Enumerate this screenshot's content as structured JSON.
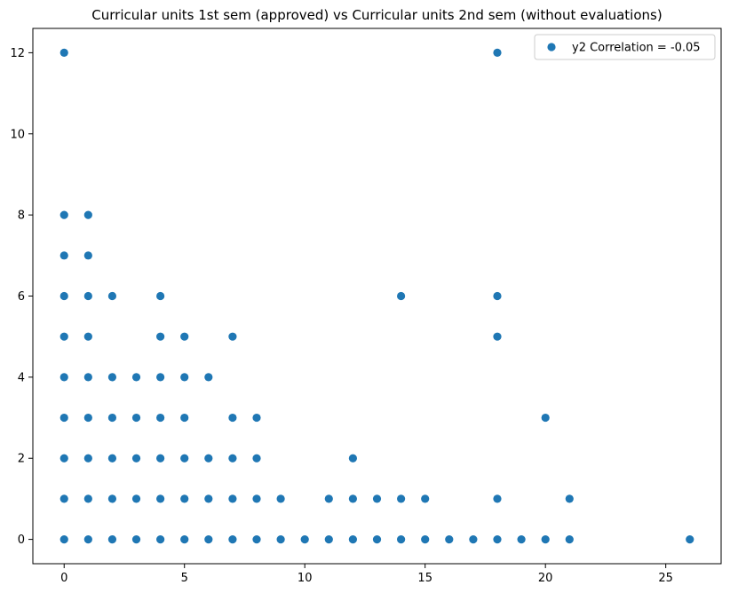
{
  "chart_data": {
    "type": "scatter",
    "title": "Curricular units 1st sem (approved) vs Curricular units 2nd sem (without evaluations)",
    "xlabel": "",
    "ylabel": "",
    "xlim": [
      -1.3,
      27.3
    ],
    "ylim": [
      -0.6,
      12.6
    ],
    "xticks": [
      0,
      5,
      10,
      15,
      20,
      25
    ],
    "yticks": [
      0,
      2,
      4,
      6,
      8,
      10,
      12
    ],
    "grid": false,
    "legend_position": "top-right",
    "series": [
      {
        "name": "y2 Correlation = -0.05",
        "color": "#1f77b4",
        "points": [
          [
            0,
            0
          ],
          [
            1,
            0
          ],
          [
            2,
            0
          ],
          [
            3,
            0
          ],
          [
            4,
            0
          ],
          [
            5,
            0
          ],
          [
            6,
            0
          ],
          [
            7,
            0
          ],
          [
            8,
            0
          ],
          [
            9,
            0
          ],
          [
            10,
            0
          ],
          [
            11,
            0
          ],
          [
            12,
            0
          ],
          [
            13,
            0
          ],
          [
            14,
            0
          ],
          [
            15,
            0
          ],
          [
            16,
            0
          ],
          [
            17,
            0
          ],
          [
            18,
            0
          ],
          [
            19,
            0
          ],
          [
            20,
            0
          ],
          [
            21,
            0
          ],
          [
            26,
            0
          ],
          [
            0,
            1
          ],
          [
            1,
            1
          ],
          [
            2,
            1
          ],
          [
            3,
            1
          ],
          [
            4,
            1
          ],
          [
            5,
            1
          ],
          [
            6,
            1
          ],
          [
            7,
            1
          ],
          [
            8,
            1
          ],
          [
            9,
            1
          ],
          [
            11,
            1
          ],
          [
            12,
            1
          ],
          [
            13,
            1
          ],
          [
            14,
            1
          ],
          [
            15,
            1
          ],
          [
            18,
            1
          ],
          [
            21,
            1
          ],
          [
            0,
            2
          ],
          [
            1,
            2
          ],
          [
            2,
            2
          ],
          [
            3,
            2
          ],
          [
            4,
            2
          ],
          [
            5,
            2
          ],
          [
            6,
            2
          ],
          [
            7,
            2
          ],
          [
            8,
            2
          ],
          [
            12,
            2
          ],
          [
            0,
            3
          ],
          [
            1,
            3
          ],
          [
            2,
            3
          ],
          [
            3,
            3
          ],
          [
            4,
            3
          ],
          [
            5,
            3
          ],
          [
            7,
            3
          ],
          [
            8,
            3
          ],
          [
            20,
            3
          ],
          [
            0,
            4
          ],
          [
            1,
            4
          ],
          [
            2,
            4
          ],
          [
            3,
            4
          ],
          [
            4,
            4
          ],
          [
            5,
            4
          ],
          [
            6,
            4
          ],
          [
            0,
            5
          ],
          [
            1,
            5
          ],
          [
            4,
            5
          ],
          [
            5,
            5
          ],
          [
            7,
            5
          ],
          [
            18,
            5
          ],
          [
            0,
            6
          ],
          [
            1,
            6
          ],
          [
            2,
            6
          ],
          [
            4,
            6
          ],
          [
            14,
            6
          ],
          [
            18,
            6
          ],
          [
            0,
            7
          ],
          [
            1,
            7
          ],
          [
            0,
            8
          ],
          [
            1,
            8
          ],
          [
            0,
            12
          ],
          [
            18,
            12
          ]
        ]
      }
    ]
  }
}
